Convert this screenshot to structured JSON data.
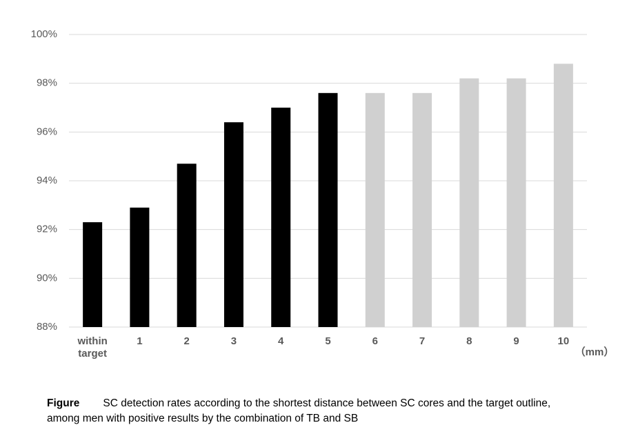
{
  "chart_data": {
    "type": "bar",
    "categories": [
      "within target",
      "1",
      "2",
      "3",
      "4",
      "5",
      "6",
      "7",
      "8",
      "9",
      "10"
    ],
    "values": [
      92.3,
      92.9,
      94.7,
      96.4,
      97.0,
      97.6,
      97.6,
      97.6,
      98.2,
      98.2,
      98.8
    ],
    "colors": [
      "#000000",
      "#000000",
      "#000000",
      "#000000",
      "#000000",
      "#000000",
      "#d0d0d0",
      "#d0d0d0",
      "#d0d0d0",
      "#d0d0d0",
      "#d0d0d0"
    ],
    "x_label": "（mm）",
    "ylim": [
      88,
      100
    ],
    "yticks": [
      {
        "value": 88,
        "label": "88%"
      },
      {
        "value": 90,
        "label": "90%"
      },
      {
        "value": 92,
        "label": "92%"
      },
      {
        "value": 94,
        "label": "94%"
      },
      {
        "value": 96,
        "label": "96%"
      },
      {
        "value": 98,
        "label": "98%"
      },
      {
        "value": 100,
        "label": "100%"
      }
    ],
    "grid": true
  },
  "caption": {
    "label": "Figure",
    "text": "SC detection rates according to the shortest distance between SC cores and the target outline, among men with positive results by the combination of TB and SB"
  }
}
